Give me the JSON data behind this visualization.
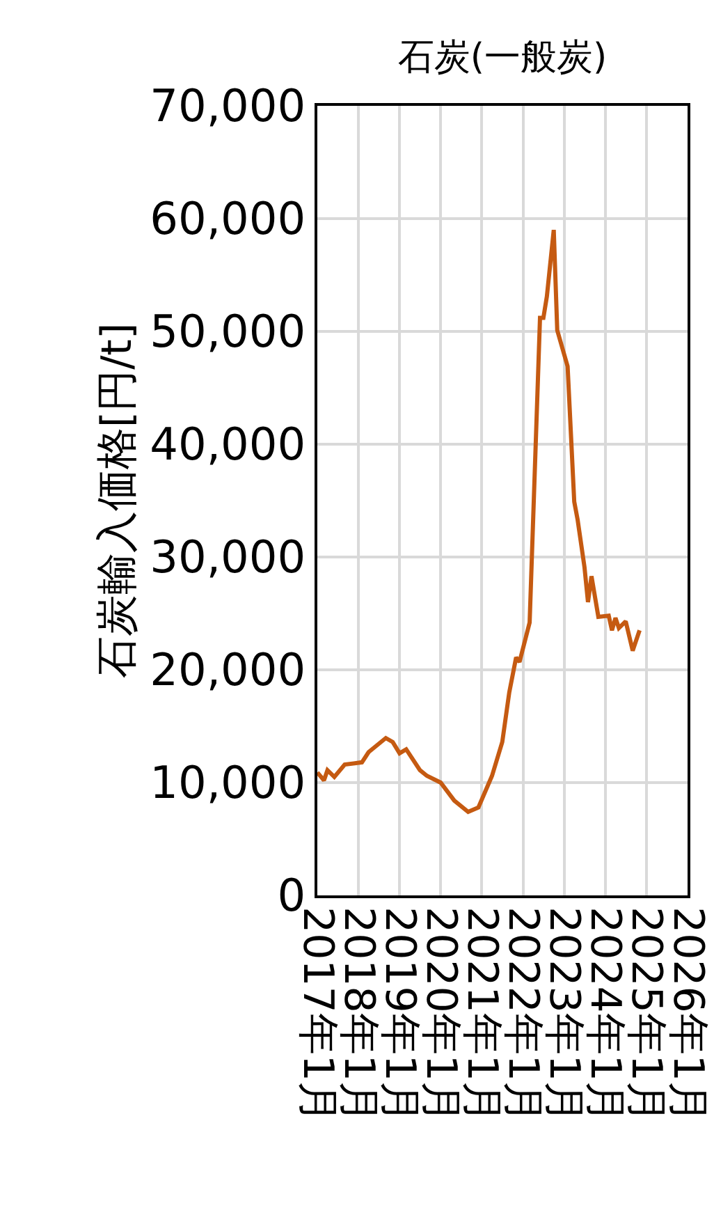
{
  "chart_data": {
    "type": "line",
    "title": "石炭(一般炭)",
    "ylabel": "石炭輸入価格[円/t]",
    "x": [
      "2017-01",
      "2017-03",
      "2017-04",
      "2017-06",
      "2017-09",
      "2018-02",
      "2018-04",
      "2018-09",
      "2018-11",
      "2019-01",
      "2019-03",
      "2019-07",
      "2019-09",
      "2020-01",
      "2020-05",
      "2020-09",
      "2020-12",
      "2021-04",
      "2021-07",
      "2021-09",
      "2021-11",
      "2021-12",
      "2022-03",
      "2022-06",
      "2022-07",
      "2022-08",
      "2022-10",
      "2022-11",
      "2023-02",
      "2023-04",
      "2023-05",
      "2023-07",
      "2023-08",
      "2023-09",
      "2023-11",
      "2024-02",
      "2024-03",
      "2024-04",
      "2024-05",
      "2024-07",
      "2024-09",
      "2024-11"
    ],
    "series": [
      {
        "color": "#c55a11",
        "values": [
          10900,
          10200,
          11100,
          10500,
          11600,
          11800,
          12700,
          13950,
          13600,
          12600,
          12950,
          11100,
          10600,
          10000,
          8400,
          7400,
          7800,
          10600,
          13600,
          18000,
          21100,
          20700,
          24200,
          51200,
          51200,
          53100,
          59000,
          50100,
          46900,
          34900,
          33300,
          29100,
          26000,
          28300,
          24700,
          24800,
          23500,
          24600,
          23700,
          24300,
          21700,
          23500
        ]
      }
    ],
    "xlim": [
      "2017-01",
      "2026-01"
    ],
    "xticks": [
      {
        "value": "2017-01",
        "label": "2017年1月"
      },
      {
        "value": "2018-01",
        "label": "2018年1月"
      },
      {
        "value": "2019-01",
        "label": "2019年1月"
      },
      {
        "value": "2020-01",
        "label": "2020年1月"
      },
      {
        "value": "2021-01",
        "label": "2021年1月"
      },
      {
        "value": "2022-01",
        "label": "2022年1月"
      },
      {
        "value": "2023-01",
        "label": "2023年1月"
      },
      {
        "value": "2024-01",
        "label": "2024年1月"
      },
      {
        "value": "2025-01",
        "label": "2025年1月"
      },
      {
        "value": "2026-01",
        "label": "2026年1月"
      }
    ],
    "ylim": [
      0,
      70000
    ],
    "yticks": [
      0,
      {
        "value": 10000,
        "label": "10,000"
      },
      {
        "value": 20000,
        "label": "20,000"
      },
      {
        "value": 30000,
        "label": "30,000"
      },
      {
        "value": 40000,
        "label": "40,000"
      },
      {
        "value": 50000,
        "label": "50,000"
      },
      {
        "value": 60000,
        "label": "60,000"
      },
      {
        "value": 70000,
        "label": "70,000"
      }
    ],
    "grid": true
  }
}
